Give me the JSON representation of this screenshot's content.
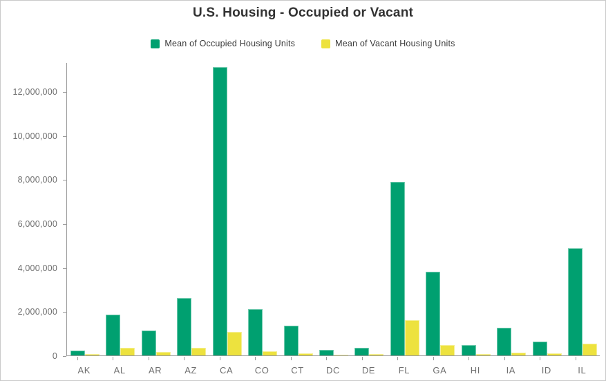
{
  "chart_data": {
    "type": "bar",
    "title": "U.S. Housing - Occupied or Vacant",
    "categories": [
      "AK",
      "AL",
      "AR",
      "AZ",
      "CA",
      "CO",
      "CT",
      "DC",
      "DE",
      "FL",
      "GA",
      "HI",
      "IA",
      "ID",
      "IL"
    ],
    "series": [
      {
        "name": "Mean of Occupied Housing Units",
        "color": "#00a070",
        "values": [
          230000,
          1850000,
          1130000,
          2610000,
          13100000,
          2100000,
          1350000,
          240000,
          350000,
          7890000,
          3800000,
          460000,
          1260000,
          620000,
          4870000
        ]
      },
      {
        "name": "Mean of Vacant Housing Units",
        "color": "#ede23e",
        "values": [
          55000,
          330000,
          170000,
          350000,
          1070000,
          190000,
          95000,
          30000,
          63000,
          1600000,
          480000,
          75000,
          135000,
          90000,
          520000
        ]
      }
    ],
    "xlabel": "",
    "ylabel": "",
    "ylim": [
      0,
      13320000
    ],
    "yticks": [
      0,
      2000000,
      4000000,
      6000000,
      8000000,
      10000000,
      12000000
    ],
    "ytick_labels": [
      "0",
      "2,000,000",
      "4,000,000",
      "6,000,000",
      "8,000,000",
      "10,000,000",
      "12,000,000"
    ],
    "grid": false,
    "legend_position": "top",
    "axis_color": "#9a9a9a",
    "tick_label_color": "#6e6e6e",
    "title_color": "#323232"
  }
}
